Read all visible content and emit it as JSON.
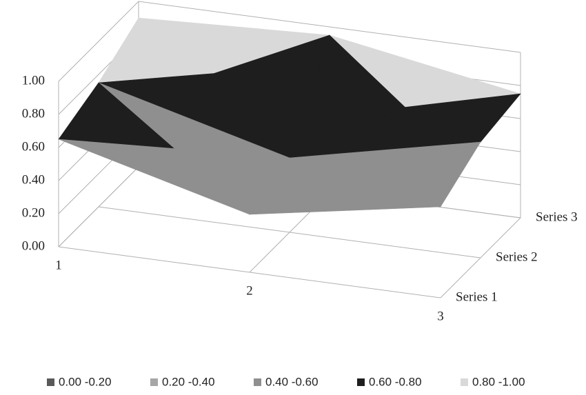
{
  "chart_data": {
    "type": "surface",
    "categories": [
      "1",
      "2",
      "3"
    ],
    "series": [
      {
        "name": "Series 1",
        "values": [
          0.65,
          0.35,
          0.55
        ]
      },
      {
        "name": "Series 2",
        "values": [
          0.75,
          0.45,
          0.7
        ]
      },
      {
        "name": "Series 3",
        "values": [
          0.9,
          0.95,
          0.75
        ]
      }
    ],
    "zlim": [
      0,
      1
    ],
    "zticks": [
      {
        "value": 0,
        "label": "0.00"
      },
      {
        "value": 0.2,
        "label": "0.20"
      },
      {
        "value": 0.4,
        "label": "0.40"
      },
      {
        "value": 0.6,
        "label": "0.60"
      },
      {
        "value": 0.8,
        "label": "0.80"
      },
      {
        "value": 1,
        "label": "1.00"
      }
    ],
    "legend": [
      {
        "label": "0.00 -0.20",
        "color": "#595959"
      },
      {
        "label": "0.20 -0.40",
        "color": "#a6a6a6"
      },
      {
        "label": "0.40 -0.60",
        "color": "#8f8f8f"
      },
      {
        "label": "0.60 -0.80",
        "color": "#1e1e1e"
      },
      {
        "label": "0.80 -1.00",
        "color": "#d9d9d9"
      }
    ],
    "grid": true
  }
}
